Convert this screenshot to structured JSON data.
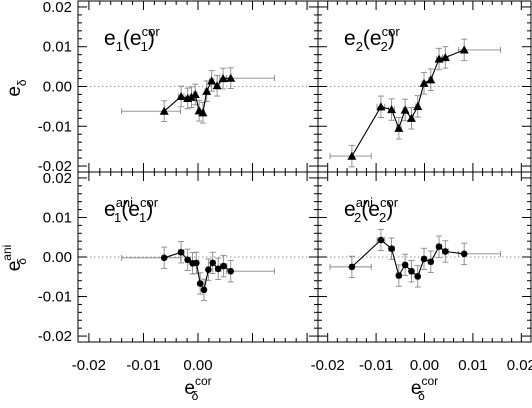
{
  "chart_data": {
    "type": "scatter",
    "x_axis": {
      "label_base": "e",
      "label_subscript": "δ",
      "label_superscript": "cor",
      "xlim": [
        -0.022,
        0.022
      ],
      "ticks": [
        -0.02,
        -0.01,
        0.0,
        0.01,
        0.02
      ],
      "tick_labels_left": [
        "-0.02",
        "-0.01",
        "0.00",
        "",
        ""
      ],
      "tick_labels_right": [
        "-0.02",
        "-0.01",
        "0.00",
        "0.01",
        "0.02"
      ]
    },
    "y_axis_top": {
      "label_base": "e",
      "label_subscript": "δ",
      "label_superscript": "",
      "ylim": [
        -0.0215,
        0.0215
      ],
      "ticks": [
        -0.02,
        -0.01,
        0.0,
        0.01,
        0.02
      ],
      "tick_labels": [
        "-0.02",
        "-0.01",
        "0.00",
        "0.01",
        "0.02"
      ]
    },
    "y_axis_bottom": {
      "label_base": "e",
      "label_subscript": "δ",
      "label_superscript": "ani",
      "ylim": [
        -0.0215,
        0.0215
      ],
      "ticks": [
        -0.02,
        -0.01,
        0.0,
        0.01,
        0.02
      ],
      "tick_labels": [
        "-0.02",
        "-0.01",
        "0.00",
        "0.01",
        "0.02"
      ]
    },
    "zero_line": "dotted",
    "panels": [
      {
        "position": "top-left",
        "label": {
          "base": "e",
          "sub": "1",
          "open": "(e",
          "sub2": "1",
          "sup2": "cor",
          "close": ")"
        },
        "marker": "triangle",
        "points": [
          {
            "x": -0.0062,
            "y": -0.0062,
            "xerr": [
              0.0078,
              0.003
            ],
            "yerr": 0.0026
          },
          {
            "x": -0.0031,
            "y": -0.0025,
            "xerr": [
              0.0005,
              0.0005
            ],
            "yerr": 0.0026
          },
          {
            "x": -0.0019,
            "y": -0.003,
            "xerr": [
              0.0004,
              0.0004
            ],
            "yerr": 0.0026
          },
          {
            "x": -0.0012,
            "y": -0.0027,
            "xerr": [
              0.0003,
              0.0003
            ],
            "yerr": 0.0026
          },
          {
            "x": -0.0005,
            "y": -0.002,
            "xerr": [
              0.0003,
              0.0003
            ],
            "yerr": 0.0026
          },
          {
            "x": 0.0002,
            "y": -0.0061,
            "xerr": [
              0.0003,
              0.0003
            ],
            "yerr": 0.0026
          },
          {
            "x": 0.0009,
            "y": -0.0066,
            "xerr": [
              0.0003,
              0.0003
            ],
            "yerr": 0.0026
          },
          {
            "x": 0.0016,
            "y": -0.0012,
            "xerr": [
              0.0003,
              0.0003
            ],
            "yerr": 0.0026
          },
          {
            "x": 0.0025,
            "y": 0.0014,
            "xerr": [
              0.0004,
              0.0004
            ],
            "yerr": 0.0026
          },
          {
            "x": 0.0035,
            "y": 0.0002,
            "xerr": [
              0.0005,
              0.0005
            ],
            "yerr": 0.0026
          },
          {
            "x": 0.0046,
            "y": 0.002,
            "xerr": [
              0.0006,
              0.0006
            ],
            "yerr": 0.0026
          },
          {
            "x": 0.006,
            "y": 0.0021,
            "xerr": [
              0.0008,
              0.008
            ],
            "yerr": 0.0026
          }
        ]
      },
      {
        "position": "top-right",
        "label": {
          "base": "e",
          "sub": "2",
          "open": "(e",
          "sub2": "2",
          "sup2": "cor",
          "close": ")"
        },
        "marker": "triangle",
        "points": [
          {
            "x": -0.015,
            "y": -0.0175,
            "xerr": [
              0.0045,
              0.004
            ],
            "yerr": 0.0027
          },
          {
            "x": -0.009,
            "y": -0.0051,
            "xerr": [
              0.0008,
              0.0008
            ],
            "yerr": 0.0027
          },
          {
            "x": -0.0068,
            "y": -0.0058,
            "xerr": [
              0.0006,
              0.0006
            ],
            "yerr": 0.0027
          },
          {
            "x": -0.0053,
            "y": -0.0105,
            "xerr": [
              0.0005,
              0.0005
            ],
            "yerr": 0.0027
          },
          {
            "x": -0.004,
            "y": -0.0059,
            "xerr": [
              0.0004,
              0.0004
            ],
            "yerr": 0.0027
          },
          {
            "x": -0.0027,
            "y": -0.008,
            "xerr": [
              0.0004,
              0.0004
            ],
            "yerr": 0.0027
          },
          {
            "x": -0.0014,
            "y": -0.005,
            "xerr": [
              0.0004,
              0.0004
            ],
            "yerr": 0.0027
          },
          {
            "x": -0.0001,
            "y": 0.0008,
            "xerr": [
              0.0004,
              0.0004
            ],
            "yerr": 0.0027
          },
          {
            "x": 0.0013,
            "y": 0.0017,
            "xerr": [
              0.0004,
              0.0004
            ],
            "yerr": 0.0027
          },
          {
            "x": 0.003,
            "y": 0.0069,
            "xerr": [
              0.0005,
              0.0005
            ],
            "yerr": 0.0027
          },
          {
            "x": 0.0043,
            "y": 0.0073,
            "xerr": [
              0.0006,
              0.0006
            ],
            "yerr": 0.0027
          },
          {
            "x": 0.0082,
            "y": 0.0092,
            "xerr": [
              0.0012,
              0.0075
            ],
            "yerr": 0.0027
          }
        ]
      },
      {
        "position": "bottom-left",
        "label": {
          "base": "e",
          "sub": "1",
          "sup": "ani",
          "open": "(e",
          "sub2": "1",
          "sup2": "cor",
          "close": ")"
        },
        "marker": "circle",
        "points": [
          {
            "x": -0.0062,
            "y": -0.0002,
            "xerr": [
              0.0078,
              0.003
            ],
            "yerr": 0.0027
          },
          {
            "x": -0.0031,
            "y": 0.0012,
            "xerr": [
              0.0005,
              0.0005
            ],
            "yerr": 0.0027
          },
          {
            "x": -0.0019,
            "y": -0.0007,
            "xerr": [
              0.0004,
              0.0004
            ],
            "yerr": 0.0027
          },
          {
            "x": -0.001,
            "y": -0.0016,
            "xerr": [
              0.0003,
              0.0003
            ],
            "yerr": 0.0027
          },
          {
            "x": -0.0003,
            "y": -0.0015,
            "xerr": [
              0.0003,
              0.0003
            ],
            "yerr": 0.0027
          },
          {
            "x": 0.0004,
            "y": -0.0067,
            "xerr": [
              0.0003,
              0.0003
            ],
            "yerr": 0.0027
          },
          {
            "x": 0.0011,
            "y": -0.0083,
            "xerr": [
              0.0003,
              0.0003
            ],
            "yerr": 0.0027
          },
          {
            "x": 0.0019,
            "y": -0.0032,
            "xerr": [
              0.0003,
              0.0003
            ],
            "yerr": 0.0027
          },
          {
            "x": 0.0027,
            "y": -0.0015,
            "xerr": [
              0.0004,
              0.0004
            ],
            "yerr": 0.0027
          },
          {
            "x": 0.0037,
            "y": -0.003,
            "xerr": [
              0.0005,
              0.0005
            ],
            "yerr": 0.0027
          },
          {
            "x": 0.0047,
            "y": -0.0023,
            "xerr": [
              0.0006,
              0.0006
            ],
            "yerr": 0.0027
          },
          {
            "x": 0.006,
            "y": -0.0036,
            "xerr": [
              0.0008,
              0.008
            ],
            "yerr": 0.0027
          }
        ]
      },
      {
        "position": "bottom-right",
        "label": {
          "base": "e",
          "sub": "2",
          "sup": "ani",
          "open": "(e",
          "sub2": "2",
          "sup2": "cor",
          "close": ")"
        },
        "marker": "circle",
        "points": [
          {
            "x": -0.015,
            "y": -0.0025,
            "xerr": [
              0.0045,
              0.004
            ],
            "yerr": 0.0027
          },
          {
            "x": -0.009,
            "y": 0.0043,
            "xerr": [
              0.0008,
              0.0008
            ],
            "yerr": 0.0027
          },
          {
            "x": -0.0068,
            "y": 0.0021,
            "xerr": [
              0.0006,
              0.0006
            ],
            "yerr": 0.0027
          },
          {
            "x": -0.0053,
            "y": -0.0047,
            "xerr": [
              0.0005,
              0.0005
            ],
            "yerr": 0.0027
          },
          {
            "x": -0.004,
            "y": -0.002,
            "xerr": [
              0.0004,
              0.0004
            ],
            "yerr": 0.0027
          },
          {
            "x": -0.0027,
            "y": -0.0036,
            "xerr": [
              0.0004,
              0.0004
            ],
            "yerr": 0.0027
          },
          {
            "x": -0.0014,
            "y": -0.0049,
            "xerr": [
              0.0004,
              0.0004
            ],
            "yerr": 0.0027
          },
          {
            "x": -0.0001,
            "y": -0.0005,
            "xerr": [
              0.0004,
              0.0004
            ],
            "yerr": 0.0027
          },
          {
            "x": 0.0013,
            "y": -0.0012,
            "xerr": [
              0.0004,
              0.0004
            ],
            "yerr": 0.0027
          },
          {
            "x": 0.003,
            "y": 0.0026,
            "xerr": [
              0.0005,
              0.0005
            ],
            "yerr": 0.0027
          },
          {
            "x": 0.0043,
            "y": 0.0014,
            "xerr": [
              0.0006,
              0.0006
            ],
            "yerr": 0.0027
          },
          {
            "x": 0.0082,
            "y": 0.0008,
            "xerr": [
              0.0012,
              0.0075
            ],
            "yerr": 0.0027
          }
        ]
      }
    ]
  }
}
